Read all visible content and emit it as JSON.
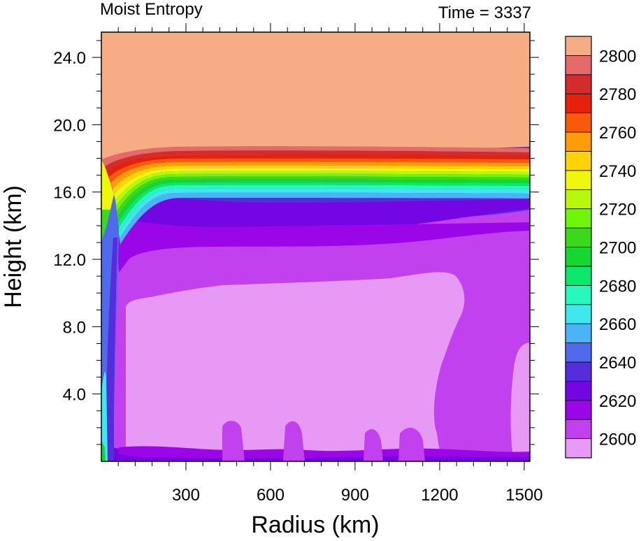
{
  "chart_data": {
    "type": "heatmap",
    "title": "Moist Entropy",
    "subtitle": "Time = 3337",
    "xlabel": "Radius (km)",
    "ylabel": "Height (km)",
    "xlim": [
      0,
      1520
    ],
    "ylim": [
      0,
      25.5
    ],
    "xticks": [
      300,
      600,
      900,
      1200,
      1500
    ],
    "xtick_labels": [
      "300",
      "600",
      "900",
      "1200",
      "1500"
    ],
    "yticks": [
      4,
      8,
      12,
      16,
      20,
      24
    ],
    "ytick_labels": [
      "4.0",
      "8.0",
      "12.0",
      "16.0",
      "20.0",
      "24.0"
    ],
    "colorbar": {
      "levels": [
        2590,
        2600,
        2610,
        2620,
        2630,
        2640,
        2650,
        2660,
        2670,
        2680,
        2690,
        2700,
        2710,
        2720,
        2730,
        2740,
        2750,
        2760,
        2770,
        2780,
        2790,
        2800,
        2810
      ],
      "labels": [
        "2600",
        "2620",
        "2640",
        "2660",
        "2680",
        "2700",
        "2720",
        "2740",
        "2760",
        "2780",
        "2800"
      ],
      "colors": [
        "#e699f5",
        "#c241ef",
        "#9b06e8",
        "#7406e3",
        "#552ddb",
        "#4f6beb",
        "#4bb3f6",
        "#3fe8ec",
        "#27f9bd",
        "#0de86d",
        "#14d82f",
        "#3ad91c",
        "#6ff509",
        "#b7f80c",
        "#eff70a",
        "#ffd20a",
        "#ff9c09",
        "#f95a0a",
        "#e5210b",
        "#d42b2b",
        "#e56a6a",
        "#f7ad83"
      ]
    },
    "regions_description": [
      {
        "level": 2800,
        "zone": "stratosphere above ~18.5 km"
      },
      {
        "level": 2690,
        "zone": "tropopause band ~16.5-18.5 km"
      },
      {
        "level": 2630,
        "zone": "upper troposphere ~13-16 km"
      },
      {
        "level": 2610,
        "zone": "mid troposphere ~10.5-13 km and outer radius"
      },
      {
        "level": 2595,
        "zone": "minimum lower-mid troposphere 300-1200 km"
      }
    ]
  }
}
